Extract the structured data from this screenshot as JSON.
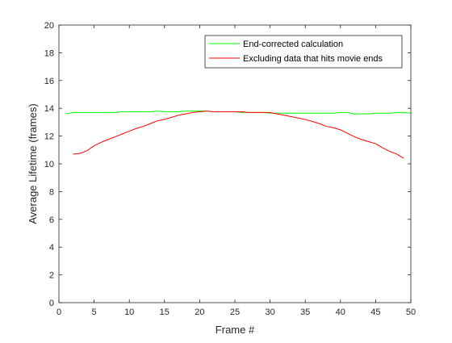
{
  "chart_data": {
    "type": "line",
    "title": "",
    "xlabel": "Frame #",
    "ylabel": "Average Lifetime (frames)",
    "xlim": [
      0,
      50
    ],
    "ylim": [
      0,
      20
    ],
    "xticks": [
      0,
      5,
      10,
      15,
      20,
      25,
      30,
      35,
      40,
      45,
      50
    ],
    "yticks": [
      0,
      2,
      4,
      6,
      8,
      10,
      12,
      14,
      16,
      18,
      20
    ],
    "grid": false,
    "legend_position": "top-right",
    "series": [
      {
        "name": "End-corrected calculation",
        "color": "#00ff00",
        "x": [
          1,
          2,
          3,
          4,
          5,
          6,
          7,
          8,
          9,
          10,
          11,
          12,
          13,
          14,
          15,
          16,
          17,
          18,
          19,
          20,
          21,
          22,
          23,
          24,
          25,
          26,
          27,
          28,
          29,
          30,
          31,
          32,
          33,
          34,
          35,
          36,
          37,
          38,
          39,
          40,
          41,
          42,
          43,
          44,
          45,
          46,
          47,
          48,
          49,
          50
        ],
        "y": [
          13.6,
          13.7,
          13.7,
          13.7,
          13.7,
          13.7,
          13.7,
          13.7,
          13.75,
          13.75,
          13.75,
          13.75,
          13.75,
          13.8,
          13.75,
          13.75,
          13.75,
          13.8,
          13.8,
          13.8,
          13.8,
          13.75,
          13.75,
          13.75,
          13.75,
          13.7,
          13.7,
          13.7,
          13.7,
          13.65,
          13.65,
          13.65,
          13.65,
          13.65,
          13.65,
          13.65,
          13.65,
          13.65,
          13.65,
          13.7,
          13.7,
          13.6,
          13.6,
          13.6,
          13.65,
          13.65,
          13.65,
          13.7,
          13.7,
          13.65
        ]
      },
      {
        "name": "Excluding data that hits movie ends",
        "color": "#ff0000",
        "x": [
          2,
          3,
          4,
          5,
          6,
          7,
          8,
          9,
          10,
          11,
          12,
          13,
          14,
          15,
          16,
          17,
          18,
          19,
          20,
          21,
          22,
          23,
          24,
          25,
          26,
          27,
          28,
          29,
          30,
          31,
          32,
          33,
          34,
          35,
          36,
          37,
          38,
          39,
          40,
          41,
          42,
          43,
          44,
          45,
          46,
          47,
          48,
          49
        ],
        "y": [
          10.7,
          10.75,
          10.95,
          11.3,
          11.55,
          11.75,
          11.95,
          12.15,
          12.35,
          12.55,
          12.7,
          12.9,
          13.1,
          13.2,
          13.35,
          13.5,
          13.6,
          13.7,
          13.75,
          13.8,
          13.75,
          13.75,
          13.75,
          13.75,
          13.75,
          13.7,
          13.7,
          13.7,
          13.7,
          13.6,
          13.5,
          13.4,
          13.3,
          13.2,
          13.05,
          12.9,
          12.7,
          12.6,
          12.45,
          12.2,
          11.95,
          11.75,
          11.6,
          11.45,
          11.15,
          10.9,
          10.7,
          10.4
        ]
      }
    ]
  }
}
